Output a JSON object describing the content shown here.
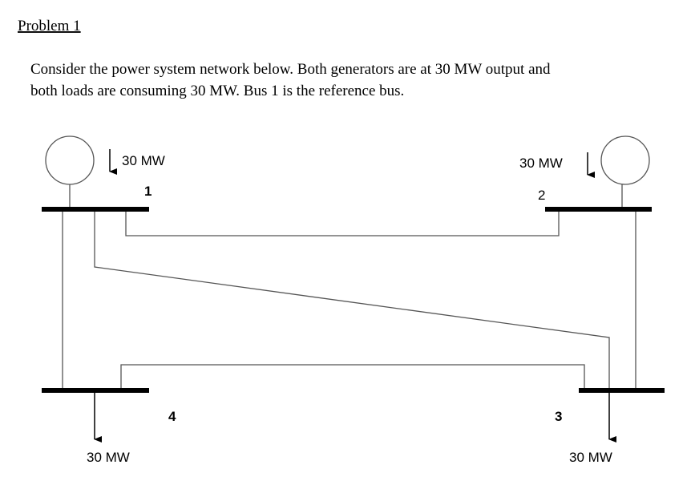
{
  "header": {
    "title": "Problem 1"
  },
  "paragraph": {
    "lines": [
      "Consider the power system network below. Both generators are at 30 MW output and",
      "both loads are consuming 30 MW. Bus 1 is the reference bus."
    ]
  },
  "diagram": {
    "generators": [
      {
        "output": "30 MW"
      },
      {
        "output": "30 MW"
      }
    ],
    "buses": [
      {
        "label": "1"
      },
      {
        "label": "2"
      },
      {
        "label": "3"
      },
      {
        "label": "4"
      }
    ],
    "loads": [
      {
        "label": "30 MW"
      },
      {
        "label": "30 MW"
      }
    ]
  }
}
